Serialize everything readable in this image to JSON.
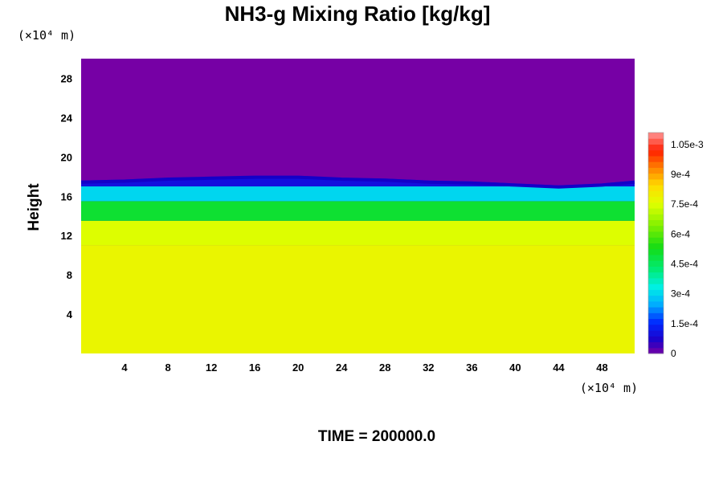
{
  "chart_data": {
    "type": "heatmap",
    "title": "NH3-g Mixing Ratio [kg/kg]",
    "xlabel": "",
    "ylabel": "Height",
    "x_unit": "(×10⁴ m)",
    "y_unit": "(×10⁴ m)",
    "xlim": [
      0,
      51
    ],
    "ylim": [
      0,
      30
    ],
    "x_ticks": [
      4,
      8,
      12,
      16,
      20,
      24,
      28,
      32,
      36,
      40,
      44,
      48
    ],
    "y_ticks": [
      4,
      8,
      12,
      16,
      20,
      24,
      28
    ],
    "colorbar": {
      "min": 0,
      "max": 0.00111,
      "tick_values": [
        0,
        0.00015,
        0.0003,
        0.00045,
        0.0006,
        0.00075,
        0.0009,
        0.00105
      ],
      "tick_labels": [
        "0",
        "1.5e-4",
        "3e-4",
        "4.5e-4",
        "6e-4",
        "7.5e-4",
        "9e-4",
        "1.05e-3"
      ]
    },
    "field": {
      "description_levels": [
        {
          "height_range": [
            0,
            11
          ],
          "value": 0.00078
        },
        {
          "height_range": [
            11,
            13.5
          ],
          "value": 0.00075
        },
        {
          "height_range": [
            13.5,
            15.5
          ],
          "value": 0.0005
        },
        {
          "height_range": [
            15.5,
            17
          ],
          "value": 0.0003
        },
        {
          "height_range": [
            17,
            17.8
          ],
          "value": 0.0001
        },
        {
          "height_range": [
            17.8,
            30
          ],
          "value": 0
        }
      ],
      "top_boundary_profile": {
        "x": [
          0,
          4,
          8,
          12,
          16,
          20,
          24,
          28,
          32,
          36,
          40,
          44,
          48,
          51
        ],
        "height": [
          17.6,
          17.7,
          17.9,
          18.0,
          18.1,
          18.1,
          17.9,
          17.8,
          17.6,
          17.5,
          17.3,
          17.1,
          17.3,
          17.6
        ]
      }
    },
    "grid": false
  },
  "footer": {
    "time_label": "TIME = 200000.0"
  }
}
